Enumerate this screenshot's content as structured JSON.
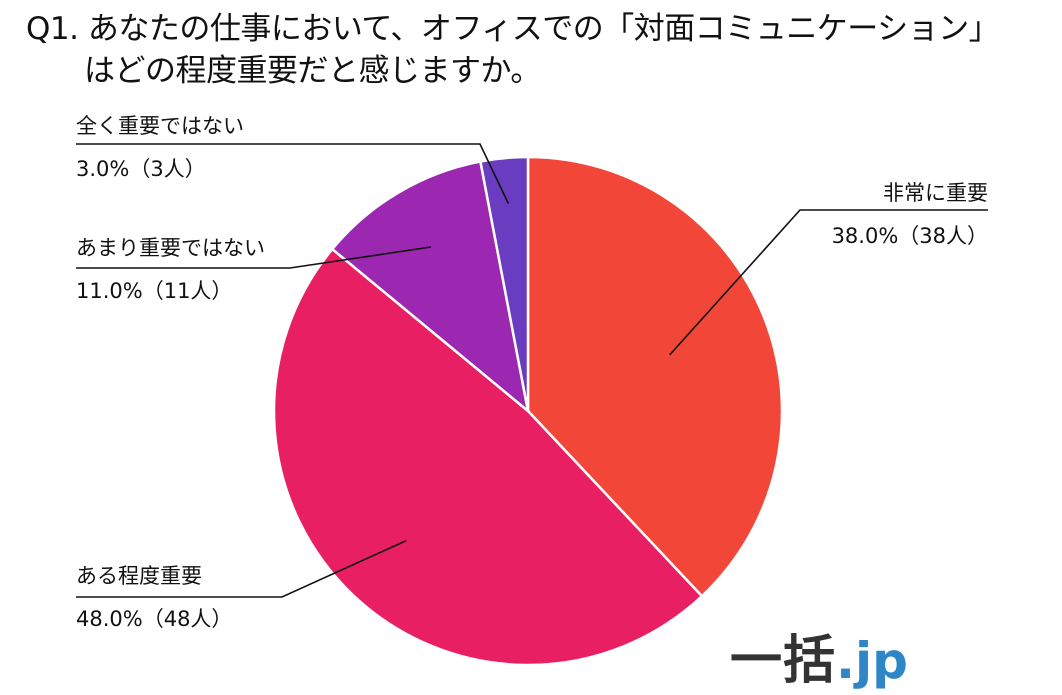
{
  "title": {
    "line1": "Q1. あなたの仕事において、オフィスでの「対面コミュニケーション」",
    "line2": "はどの程度重要だと感じますか。"
  },
  "colors": {
    "very_important": "#f24638",
    "somewhat_important": "#e91f63",
    "not_very_important": "#9c27b0",
    "not_important_at_all": "#6a3cbf",
    "leader_line": "#111111"
  },
  "chart_data": {
    "type": "pie",
    "start_angle": "12 o'clock",
    "direction": "clockwise",
    "slices": [
      {
        "label": "非常に重要",
        "value_text": "38.0%（38人）",
        "percent": 38.0,
        "count": 38,
        "color": "#f24638"
      },
      {
        "label": "ある程度重要",
        "value_text": "48.0%（48人）",
        "percent": 48.0,
        "count": 48,
        "color": "#e91f63"
      },
      {
        "label": "あまり重要ではない",
        "value_text": "11.0%（11人）",
        "percent": 11.0,
        "count": 11,
        "color": "#9c27b0"
      },
      {
        "label": "全く重要ではない",
        "value_text": "3.0%（3人）",
        "percent": 3.0,
        "count": 3,
        "color": "#6a3cbf"
      }
    ]
  },
  "brand": {
    "main": "一括",
    "suffix": ".jp"
  }
}
